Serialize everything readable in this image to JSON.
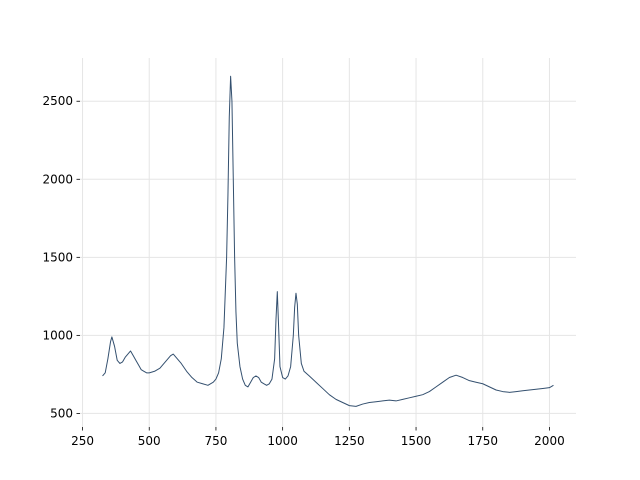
{
  "chart_data": {
    "type": "line",
    "x": [
      325,
      335,
      345,
      355,
      360,
      370,
      380,
      390,
      400,
      410,
      420,
      430,
      440,
      450,
      460,
      470,
      480,
      490,
      500,
      520,
      540,
      560,
      580,
      590,
      600,
      620,
      640,
      660,
      680,
      700,
      720,
      740,
      750,
      760,
      770,
      780,
      790,
      795,
      800,
      805,
      810,
      815,
      820,
      825,
      830,
      840,
      850,
      860,
      870,
      880,
      890,
      900,
      910,
      920,
      930,
      940,
      950,
      960,
      970,
      975,
      980,
      985,
      990,
      1000,
      1010,
      1020,
      1030,
      1040,
      1045,
      1050,
      1055,
      1060,
      1070,
      1080,
      1100,
      1125,
      1150,
      1175,
      1200,
      1225,
      1250,
      1275,
      1300,
      1325,
      1350,
      1375,
      1400,
      1425,
      1450,
      1475,
      1500,
      1525,
      1550,
      1575,
      1600,
      1625,
      1650,
      1675,
      1700,
      1725,
      1750,
      1775,
      1800,
      1825,
      1850,
      1875,
      1900,
      1925,
      1950,
      1975,
      2000,
      2015
    ],
    "series": [
      {
        "color": "#34506f",
        "values": [
          740,
          760,
          850,
          960,
          990,
          930,
          840,
          820,
          830,
          860,
          880,
          900,
          870,
          840,
          810,
          780,
          770,
          760,
          760,
          770,
          790,
          830,
          870,
          880,
          860,
          820,
          770,
          730,
          700,
          690,
          680,
          700,
          720,
          760,
          850,
          1050,
          1500,
          1900,
          2400,
          2660,
          2500,
          2000,
          1500,
          1150,
          950,
          800,
          720,
          680,
          670,
          700,
          730,
          740,
          730,
          700,
          690,
          680,
          690,
          720,
          850,
          1100,
          1280,
          1050,
          800,
          730,
          720,
          740,
          800,
          1000,
          1180,
          1270,
          1200,
          1000,
          820,
          770,
          740,
          700,
          660,
          620,
          590,
          570,
          550,
          545,
          560,
          570,
          575,
          580,
          585,
          580,
          590,
          600,
          610,
          620,
          640,
          670,
          700,
          730,
          745,
          730,
          710,
          700,
          690,
          670,
          650,
          640,
          635,
          640,
          645,
          650,
          655,
          660,
          665,
          680
        ]
      }
    ],
    "xlim": [
      240.5,
      2099.5
    ],
    "ylim": [
      413,
      2777
    ],
    "xticks": [
      250,
      500,
      750,
      1000,
      1250,
      1500,
      1750,
      2000
    ],
    "yticks": [
      500,
      1000,
      1500,
      2000,
      2500
    ],
    "grid": true
  }
}
